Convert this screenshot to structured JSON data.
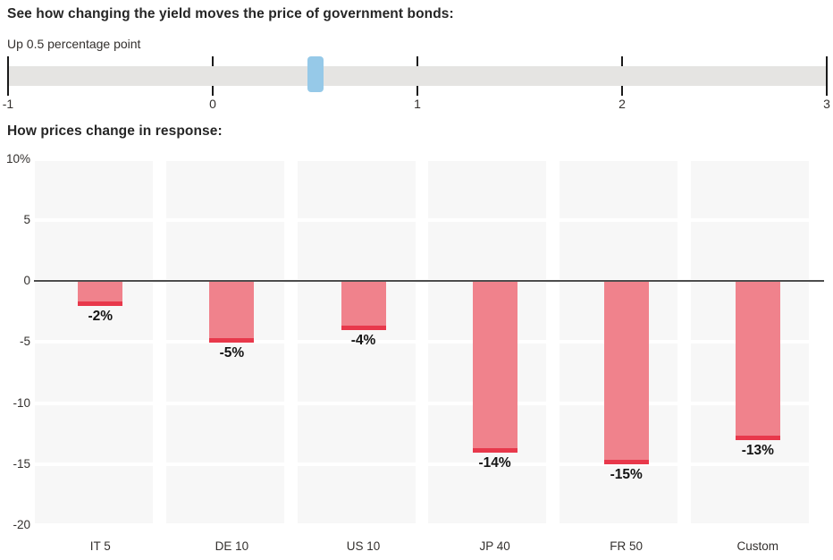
{
  "header": {
    "title": "See how changing the yield moves the price of government bonds:"
  },
  "slider": {
    "value_label": "Up 0.5 percentage point",
    "min": -1,
    "max": 3,
    "value": 0.5,
    "tick_labels": [
      "-1",
      "0",
      "1",
      "2",
      "3"
    ],
    "track_color": "#e5e4e2",
    "handle_color": "#96c9e8",
    "tick_color": "#1a1a1a"
  },
  "chart_heading": "How prices change in response:",
  "chart_data": {
    "type": "bar",
    "title": "How prices change in response:",
    "categories": [
      "IT 5",
      "DE 10",
      "US 10",
      "JP 40",
      "FR 50",
      "Custom"
    ],
    "values": [
      -2,
      -5,
      -4,
      -14,
      -15,
      -13
    ],
    "value_labels": [
      "-2%",
      "-5%",
      "-4%",
      "-14%",
      "-15%",
      "-13%"
    ],
    "xlabel": "",
    "ylabel": "%",
    "ylim": [
      -20,
      10
    ],
    "yticks": [
      10,
      5,
      0,
      -5,
      -10,
      -15,
      -20
    ],
    "ytick_labels": [
      "10%",
      "5",
      "0",
      "-5",
      "-10",
      "-15",
      "-20"
    ],
    "legend": "none",
    "grid": "horizontal bands every 5 units shown as white gaps over light-gray column backgrounds",
    "bar_color": "#f0828c",
    "bar_cap_color": "#e8384b",
    "column_bg_color": "#f7f7f7",
    "zero_line_color": "#4d4d4d"
  }
}
